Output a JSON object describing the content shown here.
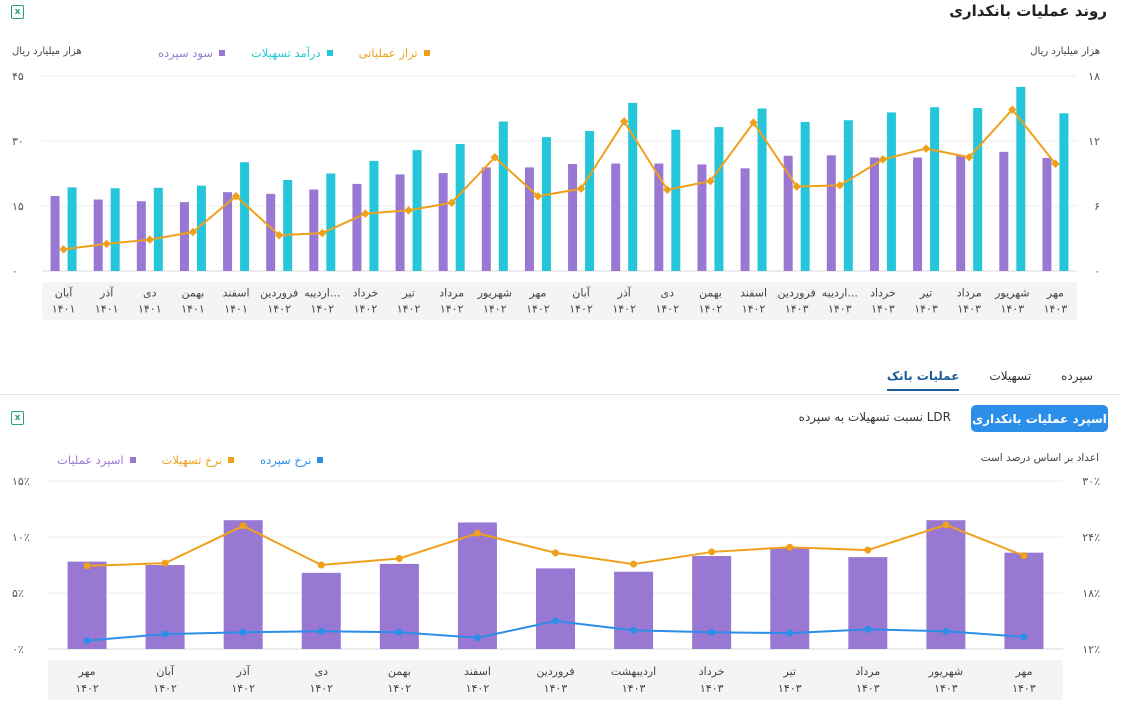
{
  "header": {
    "title": "روند عملیات بانکداری",
    "excel_icon": "excel-icon"
  },
  "top_units": {
    "left": "هزار میلیارد ریال",
    "right": "هزار میلیارد ریال"
  },
  "colors": {
    "purple": "#9878d2",
    "teal": "#26c6da",
    "orange": "#f0a11c",
    "blue": "#2b8ee8",
    "tab_active": "#1a5c9c"
  },
  "tabs": [
    {
      "label": "سپرده",
      "active": false
    },
    {
      "label": "تسهیلات",
      "active": false
    },
    {
      "label": "عملیات بانک",
      "active": true
    }
  ],
  "buttons": {
    "primary": "اسپرد عملیات بانکداری",
    "secondary": "نسبت تسهیلات به سپرده LDR"
  },
  "bottom_note": "اعداد بر اساس درصد است",
  "chart_data": [
    {
      "type": "bar",
      "title": "",
      "left_axis": {
        "ticks": [
          "۰",
          "۱۵",
          "۳۰",
          "۴۵"
        ],
        "ylim": [
          0,
          45
        ]
      },
      "right_axis": {
        "ticks": [
          "۰",
          "۶",
          "۱۲",
          "۱۸"
        ],
        "ylim": [
          0,
          18
        ]
      },
      "categories": [
        {
          "m": "آبان",
          "y": "۱۴۰۱"
        },
        {
          "m": "آذر",
          "y": "۱۴۰۱"
        },
        {
          "m": "دی",
          "y": "۱۴۰۱"
        },
        {
          "m": "بهمن",
          "y": "۱۴۰۱"
        },
        {
          "m": "اسفند",
          "y": "۱۴۰۱"
        },
        {
          "m": "فروردین",
          "y": "۱۴۰۲"
        },
        {
          "m": "اردیبه...",
          "y": "۱۴۰۲"
        },
        {
          "m": "خرداد",
          "y": "۱۴۰۲"
        },
        {
          "m": "تیر",
          "y": "۱۴۰۲"
        },
        {
          "m": "مرداد",
          "y": "۱۴۰۲"
        },
        {
          "m": "شهریور",
          "y": "۱۴۰۲"
        },
        {
          "m": "مهر",
          "y": "۱۴۰۲"
        },
        {
          "m": "آبان",
          "y": "۱۴۰۲"
        },
        {
          "m": "آذر",
          "y": "۱۴۰۲"
        },
        {
          "m": "دی",
          "y": "۱۴۰۲"
        },
        {
          "m": "بهمن",
          "y": "۱۴۰۲"
        },
        {
          "m": "اسفند",
          "y": "۱۴۰۲"
        },
        {
          "m": "فروردین",
          "y": "۱۴۰۳"
        },
        {
          "m": "اردیبه...",
          "y": "۱۴۰۳"
        },
        {
          "m": "خرداد",
          "y": "۱۴۰۳"
        },
        {
          "m": "تیر",
          "y": "۱۴۰۳"
        },
        {
          "m": "مرداد",
          "y": "۱۴۰۳"
        },
        {
          "m": "شهریور",
          "y": "۱۴۰۳"
        },
        {
          "m": "مهر",
          "y": "۱۴۰۳"
        }
      ],
      "series": [
        {
          "name": "سود سپرده",
          "axis": "left",
          "kind": "bar",
          "color": "#9878d2",
          "values": [
            17.3,
            16.5,
            16.1,
            15.9,
            18.2,
            17.8,
            18.8,
            20.1,
            22.3,
            22.6,
            23.9,
            23.9,
            24.7,
            24.8,
            24.8,
            24.6,
            23.7,
            26.6,
            26.7,
            26.2,
            26.2,
            26.6,
            27.5,
            26.1
          ]
        },
        {
          "name": "درآمد تسهیلات",
          "axis": "left",
          "kind": "bar",
          "color": "#26c6da",
          "values": [
            19.3,
            19.1,
            19.2,
            19.7,
            25.1,
            21.0,
            22.5,
            25.4,
            27.9,
            29.3,
            34.5,
            30.9,
            32.3,
            38.8,
            32.6,
            33.2,
            37.5,
            34.4,
            34.8,
            36.6,
            37.8,
            37.6,
            42.5,
            36.4
          ]
        },
        {
          "name": "تراز عملیاتی",
          "axis": "right",
          "kind": "line",
          "color": "#f0a11c",
          "values": [
            2.0,
            2.5,
            2.9,
            3.6,
            6.9,
            3.3,
            3.5,
            5.3,
            5.6,
            6.3,
            10.5,
            6.9,
            7.6,
            13.8,
            7.5,
            8.3,
            13.7,
            7.8,
            7.9,
            10.3,
            11.3,
            10.5,
            14.9,
            9.9
          ]
        }
      ]
    },
    {
      "type": "bar",
      "title": "",
      "left_axis": {
        "ticks": [
          "۰٪",
          "۵٪",
          "۱۰٪",
          "۱۵٪"
        ],
        "ylim": [
          0,
          15
        ]
      },
      "right_axis": {
        "ticks": [
          "۱۲٪",
          "۱۸٪",
          "۲۴٪",
          "۳۰٪"
        ],
        "ylim": [
          12,
          30
        ]
      },
      "categories": [
        {
          "m": "مهر",
          "y": "۱۴۰۲"
        },
        {
          "m": "آبان",
          "y": "۱۴۰۲"
        },
        {
          "m": "آذر",
          "y": "۱۴۰۲"
        },
        {
          "m": "دی",
          "y": "۱۴۰۲"
        },
        {
          "m": "بهمن",
          "y": "۱۴۰۲"
        },
        {
          "m": "اسفند",
          "y": "۱۴۰۲"
        },
        {
          "m": "فروردین",
          "y": "۱۴۰۳"
        },
        {
          "m": "اردیبهشت",
          "y": "۱۴۰۳"
        },
        {
          "m": "خرداد",
          "y": "۱۴۰۳"
        },
        {
          "m": "تیر",
          "y": "۱۴۰۳"
        },
        {
          "m": "مرداد",
          "y": "۱۴۰۳"
        },
        {
          "m": "شهریور",
          "y": "۱۴۰۳"
        },
        {
          "m": "مهر",
          "y": "۱۴۰۳"
        }
      ],
      "series": [
        {
          "name": "اسپرد عملیات",
          "axis": "left",
          "kind": "bar",
          "color": "#9878d2",
          "values": [
            7.8,
            7.5,
            11.5,
            6.8,
            7.6,
            11.3,
            7.2,
            6.9,
            8.3,
            9.0,
            8.2,
            11.5,
            8.6
          ]
        },
        {
          "name": "نرخ تسهیلات",
          "axis": "right",
          "kind": "line",
          "color": "#f0a11c",
          "values": [
            20.9,
            21.2,
            25.2,
            21.0,
            21.7,
            24.4,
            22.3,
            21.1,
            22.4,
            22.9,
            22.6,
            25.3,
            22.0
          ]
        },
        {
          "name": "نرخ سپرده",
          "axis": "right",
          "kind": "line",
          "color": "#2b8ee8",
          "values": [
            12.9,
            13.6,
            13.8,
            13.9,
            13.8,
            13.2,
            15.0,
            14.0,
            13.8,
            13.7,
            14.1,
            13.9,
            13.3
          ]
        }
      ]
    }
  ]
}
